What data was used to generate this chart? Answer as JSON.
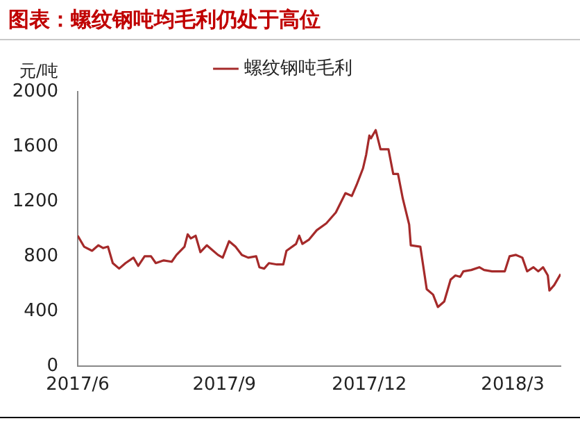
{
  "chart_data": {
    "type": "line",
    "title": "图表：螺纹钢吨均毛利仍处于高位",
    "ylabel": "元/吨",
    "x": [
      "2017-06-01",
      "2017-06-05",
      "2017-06-10",
      "2017-06-14",
      "2017-06-17",
      "2017-06-20",
      "2017-06-23",
      "2017-06-27",
      "2017-07-01",
      "2017-07-06",
      "2017-07-09",
      "2017-07-13",
      "2017-07-17",
      "2017-07-20",
      "2017-07-25",
      "2017-07-30",
      "2017-08-02",
      "2017-08-07",
      "2017-08-09",
      "2017-08-11",
      "2017-08-14",
      "2017-08-17",
      "2017-08-21",
      "2017-08-24",
      "2017-08-28",
      "2017-08-31",
      "2017-09-04",
      "2017-09-08",
      "2017-09-12",
      "2017-09-16",
      "2017-09-21",
      "2017-09-23",
      "2017-09-26",
      "2017-09-29",
      "2017-10-04",
      "2017-10-08",
      "2017-10-10",
      "2017-10-16",
      "2017-10-18",
      "2017-10-20",
      "2017-10-24",
      "2017-10-29",
      "2017-11-04",
      "2017-11-10",
      "2017-11-16",
      "2017-11-20",
      "2017-11-23",
      "2017-11-27",
      "2017-11-29",
      "2017-12-01",
      "2017-12-02",
      "2017-12-05",
      "2017-12-08",
      "2017-12-13",
      "2017-12-16",
      "2017-12-19",
      "2017-12-22",
      "2017-12-26",
      "2017-12-27",
      "2018-01-02",
      "2018-01-06",
      "2018-01-10",
      "2018-01-13",
      "2018-01-17",
      "2018-01-21",
      "2018-01-24",
      "2018-01-27",
      "2018-01-29",
      "2018-02-03",
      "2018-02-08",
      "2018-02-11",
      "2018-02-16",
      "2018-02-24",
      "2018-02-27",
      "2018-03-03",
      "2018-03-07",
      "2018-03-10",
      "2018-03-14",
      "2018-03-17",
      "2018-03-20",
      "2018-03-23",
      "2018-03-24",
      "2018-03-27",
      "2018-03-31"
    ],
    "series": [
      {
        "name": "螺纹钢吨毛利",
        "color": "#a52a2a",
        "values": [
          950,
          870,
          840,
          880,
          860,
          870,
          750,
          710,
          750,
          790,
          730,
          800,
          800,
          750,
          770,
          760,
          810,
          870,
          960,
          930,
          950,
          830,
          880,
          850,
          810,
          790,
          910,
          870,
          810,
          790,
          800,
          720,
          710,
          750,
          740,
          740,
          840,
          890,
          950,
          890,
          920,
          990,
          1040,
          1120,
          1260,
          1240,
          1320,
          1440,
          1540,
          1680,
          1660,
          1720,
          1580,
          1580,
          1400,
          1400,
          1220,
          1030,
          880,
          870,
          560,
          520,
          430,
          470,
          630,
          660,
          650,
          690,
          700,
          720,
          700,
          690,
          690,
          800,
          810,
          790,
          690,
          720,
          690,
          720,
          660,
          550,
          590,
          670
        ]
      }
    ],
    "xlim": [
      "2017-06-01",
      "2018-03-31"
    ],
    "xticks": [
      {
        "value": "2017-06-01",
        "label": "2017/6"
      },
      {
        "value": "2017-09-01",
        "label": "2017/9"
      },
      {
        "value": "2017-12-01",
        "label": "2017/12"
      },
      {
        "value": "2018-03-01",
        "label": "2018/3"
      }
    ],
    "ylim": [
      0,
      2000
    ],
    "yticks": [
      0,
      400,
      800,
      1200,
      1600,
      2000
    ],
    "grid": false,
    "legend": "top",
    "marker": "none",
    "line_style": "solid"
  }
}
